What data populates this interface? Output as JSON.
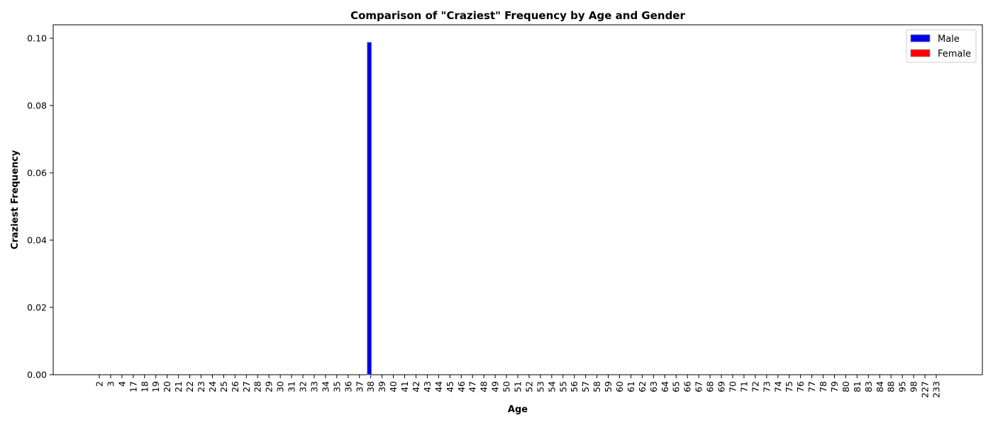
{
  "chart_data": {
    "type": "bar",
    "title": "Comparison of \"Craziest\" Frequency by Age and Gender",
    "xlabel": "Age",
    "ylabel": "Craziest Frequency",
    "ylim": [
      0,
      0.104
    ],
    "yticks": [
      "0.00",
      "0.02",
      "0.04",
      "0.06",
      "0.08",
      "0.10"
    ],
    "legend_position": "top-right",
    "categories": [
      "2",
      "3",
      "4",
      "17",
      "18",
      "19",
      "20",
      "21",
      "22",
      "23",
      "24",
      "25",
      "26",
      "27",
      "28",
      "29",
      "30",
      "31",
      "32",
      "33",
      "34",
      "35",
      "36",
      "37",
      "38",
      "39",
      "40",
      "41",
      "42",
      "43",
      "44",
      "45",
      "46",
      "47",
      "48",
      "49",
      "50",
      "51",
      "52",
      "53",
      "54",
      "55",
      "56",
      "57",
      "58",
      "59",
      "60",
      "61",
      "62",
      "63",
      "64",
      "65",
      "66",
      "67",
      "68",
      "69",
      "70",
      "71",
      "72",
      "73",
      "74",
      "75",
      "76",
      "77",
      "78",
      "79",
      "80",
      "81",
      "83",
      "84",
      "88",
      "95",
      "98",
      "227",
      "233"
    ],
    "series": [
      {
        "name": "Male",
        "color": "#0000ee",
        "values": [
          0,
          0,
          0,
          0,
          0,
          0,
          0,
          0,
          0,
          0,
          0,
          0,
          0,
          0,
          0,
          0,
          0,
          0,
          0,
          0,
          0,
          0,
          0,
          0,
          0.0988,
          0,
          0,
          0,
          0,
          0,
          0,
          0,
          0,
          0,
          0,
          0,
          0,
          0,
          0,
          0,
          0,
          0,
          0,
          0,
          0,
          0,
          0,
          0,
          0,
          0,
          0,
          0,
          0,
          0,
          0,
          0,
          0,
          0,
          0,
          0,
          0,
          0,
          0,
          0,
          0,
          0,
          0,
          0,
          0,
          0,
          0,
          0,
          0,
          0,
          0
        ]
      },
      {
        "name": "Female",
        "color": "#ff0000",
        "values": [
          0,
          0,
          0,
          0,
          0,
          0,
          0,
          0,
          0,
          0,
          0,
          0,
          0,
          0,
          0,
          0,
          0,
          0,
          0,
          0,
          0,
          0,
          0,
          0,
          0,
          0,
          0,
          0,
          0,
          0,
          0,
          0,
          0,
          0,
          0,
          0,
          0,
          0,
          0,
          0,
          0,
          0,
          0,
          0,
          0,
          0,
          0,
          0,
          0,
          0,
          0,
          0,
          0,
          0,
          0,
          0,
          0,
          0,
          0,
          0,
          0,
          0,
          0,
          0,
          0,
          0,
          0,
          0,
          0,
          0,
          0,
          0,
          0,
          0,
          0
        ]
      }
    ]
  }
}
